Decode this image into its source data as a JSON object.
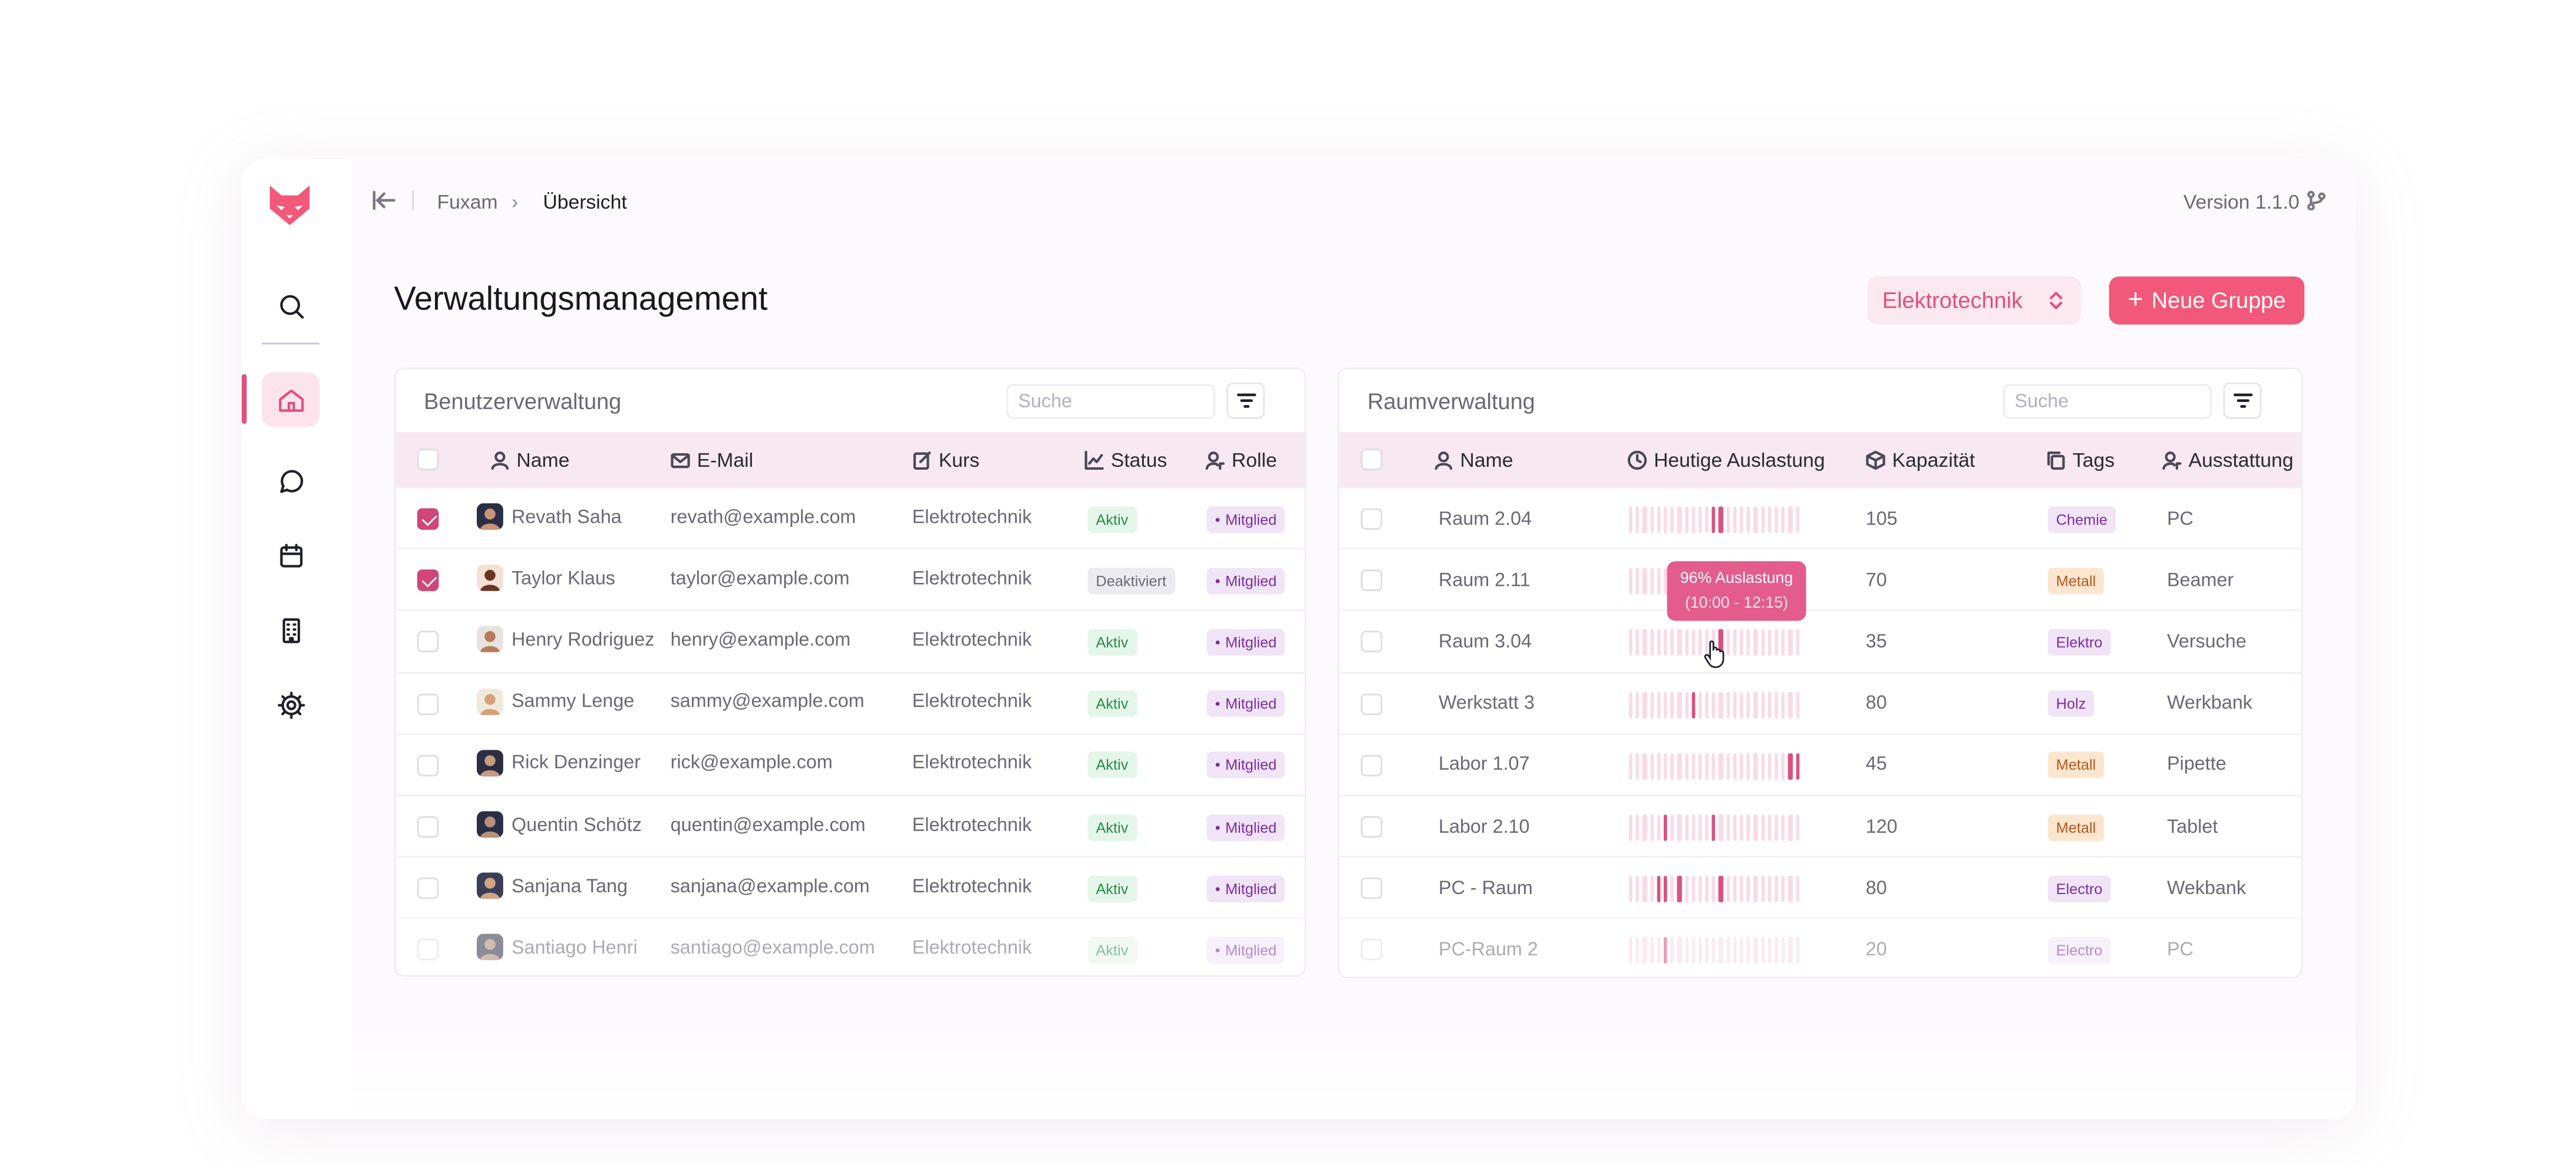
{
  "app": {
    "breadcrumb": [
      "Fuxam",
      "Übersicht"
    ],
    "breadcrumb_sep": "›",
    "version": "Version 1.1.0"
  },
  "page_title": "Verwaltungsmanagement",
  "department_select": "Elektrotechnik",
  "new_group_button": "Neue Gruppe",
  "users": {
    "title": "Benutzerverwaltung",
    "search_placeholder": "Suche",
    "columns": [
      "Name",
      "E-Mail",
      "Kurs",
      "Status",
      "Rolle"
    ],
    "rows": [
      {
        "name": "Revath Saha",
        "email": "revath@example.com",
        "course": "Elektrotechnik",
        "status": "Aktiv",
        "role": "Mitglied",
        "checked": true
      },
      {
        "name": "Taylor Klaus",
        "email": "taylor@example.com",
        "course": "Elektrotechnik",
        "status": "Deaktiviert",
        "role": "Mitglied",
        "checked": true
      },
      {
        "name": "Henry Rodriguez",
        "email": "henry@example.com",
        "course": "Elektrotechnik",
        "status": "Aktiv",
        "role": "Mitglied",
        "checked": false
      },
      {
        "name": "Sammy Lenge",
        "email": "sammy@example.com",
        "course": "Elektrotechnik",
        "status": "Aktiv",
        "role": "Mitglied",
        "checked": false
      },
      {
        "name": "Rick Denzinger",
        "email": "rick@example.com",
        "course": "Elektrotechnik",
        "status": "Aktiv",
        "role": "Mitglied",
        "checked": false
      },
      {
        "name": "Quentin Schötz",
        "email": "quentin@example.com",
        "course": "Elektrotechnik",
        "status": "Aktiv",
        "role": "Mitglied",
        "checked": false
      },
      {
        "name": "Sanjana Tang",
        "email": "sanjana@example.com",
        "course": "Elektrotechnik",
        "status": "Aktiv",
        "role": "Mitglied",
        "checked": false
      },
      {
        "name": "Santiago Henri",
        "email": "santiago@example.com",
        "course": "Elektrotechnik",
        "status": "Aktiv",
        "role": "Mitglied",
        "checked": false
      }
    ]
  },
  "rooms": {
    "title": "Raumverwaltung",
    "search_placeholder": "Suche",
    "columns": [
      "Name",
      "Heutige Auslastung",
      "Kapazität",
      "Tags",
      "Ausstattung"
    ],
    "tooltip": {
      "line1": "96% Auslastung",
      "line2": "(10:00 - 12:15)"
    },
    "rows": [
      {
        "name": "Raum 2.04",
        "hot_slots": [
          12,
          13
        ],
        "capacity": "105",
        "tag": "Chemie",
        "tag_kind": "purple",
        "equipment": "PC"
      },
      {
        "name": "Raum 2.11",
        "hot_slots": [],
        "capacity": "70",
        "tag": "Metall",
        "tag_kind": "orange",
        "equipment": "Beamer"
      },
      {
        "name": "Raum 3.04",
        "hot_slots": [
          13
        ],
        "capacity": "35",
        "tag": "Elektro",
        "tag_kind": "purple",
        "equipment": "Versuche"
      },
      {
        "name": "Werkstatt 3",
        "hot_slots": [
          9
        ],
        "capacity": "80",
        "tag": "Holz",
        "tag_kind": "purple",
        "equipment": "Werkbank"
      },
      {
        "name": "Labor 1.07",
        "hot_slots": [
          23,
          24
        ],
        "capacity": "45",
        "tag": "Metall",
        "tag_kind": "orange",
        "equipment": "Pipette"
      },
      {
        "name": "Labor 2.10",
        "hot_slots": [
          5,
          12
        ],
        "capacity": "120",
        "tag": "Metall",
        "tag_kind": "orange",
        "equipment": "Tablet"
      },
      {
        "name": "PC - Raum",
        "hot_slots": [
          4,
          5,
          7,
          13
        ],
        "capacity": "80",
        "tag": "Electro",
        "tag_kind": "purple",
        "equipment": "Wekbank"
      },
      {
        "name": "PC-Raum 2",
        "hot_slots": [
          5
        ],
        "capacity": "20",
        "tag": "Electro",
        "tag_kind": "purple",
        "equipment": "PC"
      }
    ]
  },
  "colors": {
    "accent": "#e0507c",
    "header_bg": "#f8e8f1"
  }
}
